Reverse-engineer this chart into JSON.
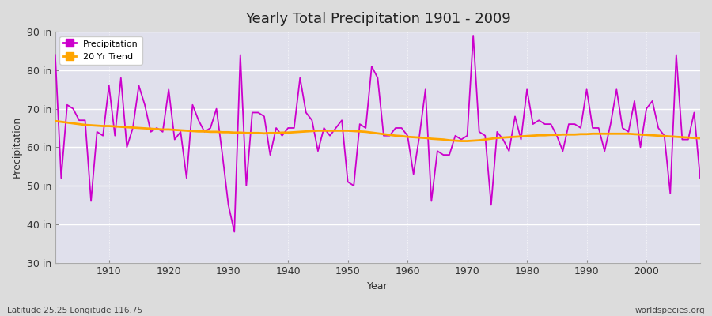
{
  "title": "Yearly Total Precipitation 1901 - 2009",
  "xlabel": "Year",
  "ylabel": "Precipitation",
  "bottom_left_label": "Latitude 25.25 Longitude 116.75",
  "bottom_right_label": "worldspecies.org",
  "ylim": [
    30,
    90
  ],
  "yticks": [
    30,
    40,
    50,
    60,
    70,
    80,
    90
  ],
  "ytick_labels": [
    "30 in",
    "40 in",
    "50 in",
    "60 in",
    "70 in",
    "80 in",
    "90 in"
  ],
  "xlim": [
    1901,
    2009
  ],
  "xticks": [
    1910,
    1920,
    1930,
    1940,
    1950,
    1960,
    1970,
    1980,
    1990,
    2000
  ],
  "precipitation_color": "#CC00CC",
  "trend_color": "#FFA500",
  "fig_background": "#DCDCDC",
  "plot_background": "#E0E0EC",
  "years": [
    1901,
    1902,
    1903,
    1904,
    1905,
    1906,
    1907,
    1908,
    1909,
    1910,
    1911,
    1912,
    1913,
    1914,
    1915,
    1916,
    1917,
    1918,
    1919,
    1920,
    1921,
    1922,
    1923,
    1924,
    1925,
    1926,
    1927,
    1928,
    1929,
    1930,
    1931,
    1932,
    1933,
    1934,
    1935,
    1936,
    1937,
    1938,
    1939,
    1940,
    1941,
    1942,
    1943,
    1944,
    1945,
    1946,
    1947,
    1948,
    1949,
    1950,
    1951,
    1952,
    1953,
    1954,
    1955,
    1956,
    1957,
    1958,
    1959,
    1960,
    1961,
    1962,
    1963,
    1964,
    1965,
    1966,
    1967,
    1968,
    1969,
    1970,
    1971,
    1972,
    1973,
    1974,
    1975,
    1976,
    1977,
    1978,
    1979,
    1980,
    1981,
    1982,
    1983,
    1984,
    1985,
    1986,
    1987,
    1988,
    1989,
    1990,
    1991,
    1992,
    1993,
    1994,
    1995,
    1996,
    1997,
    1998,
    1999,
    2000,
    2001,
    2002,
    2003,
    2004,
    2005,
    2006,
    2007,
    2008,
    2009
  ],
  "precipitation": [
    84,
    52,
    71,
    70,
    67,
    67,
    46,
    64,
    63,
    76,
    63,
    78,
    60,
    65,
    76,
    71,
    64,
    65,
    64,
    75,
    62,
    64,
    52,
    71,
    67,
    64,
    65,
    70,
    58,
    45,
    38,
    84,
    50,
    69,
    69,
    68,
    58,
    65,
    63,
    65,
    65,
    78,
    69,
    67,
    59,
    65,
    63,
    65,
    67,
    51,
    50,
    66,
    65,
    81,
    78,
    63,
    63,
    65,
    65,
    63,
    53,
    63,
    75,
    46,
    59,
    58,
    58,
    63,
    62,
    63,
    89,
    64,
    63,
    45,
    64,
    62,
    59,
    68,
    62,
    75,
    66,
    67,
    66,
    66,
    63,
    59,
    66,
    66,
    65,
    75,
    65,
    65,
    59,
    66,
    75,
    65,
    64,
    72,
    60,
    70,
    72,
    65,
    63,
    48,
    84,
    62,
    62,
    69,
    52
  ],
  "trend": [
    66.8,
    66.6,
    66.4,
    66.2,
    66.0,
    65.8,
    65.7,
    65.6,
    65.5,
    65.5,
    65.4,
    65.3,
    65.2,
    65.1,
    65.0,
    64.9,
    64.8,
    64.7,
    64.6,
    64.6,
    64.5,
    64.4,
    64.3,
    64.2,
    64.1,
    64.1,
    64.0,
    64.0,
    63.9,
    63.9,
    63.8,
    63.8,
    63.7,
    63.7,
    63.7,
    63.6,
    63.7,
    63.7,
    63.8,
    63.8,
    63.9,
    64.0,
    64.1,
    64.2,
    64.3,
    64.3,
    64.3,
    64.3,
    64.3,
    64.3,
    64.2,
    64.1,
    64.0,
    63.8,
    63.6,
    63.4,
    63.2,
    63.0,
    62.9,
    62.7,
    62.6,
    62.5,
    62.4,
    62.2,
    62.1,
    62.0,
    61.8,
    61.7,
    61.6,
    61.6,
    61.7,
    61.8,
    62.0,
    62.2,
    62.4,
    62.5,
    62.6,
    62.7,
    62.8,
    62.9,
    63.0,
    63.1,
    63.1,
    63.2,
    63.2,
    63.3,
    63.3,
    63.3,
    63.4,
    63.4,
    63.5,
    63.5,
    63.5,
    63.5,
    63.5,
    63.5,
    63.5,
    63.4,
    63.3,
    63.2,
    63.1,
    63.0,
    62.9,
    62.8,
    62.7,
    62.6,
    62.5,
    62.4,
    62.3
  ]
}
